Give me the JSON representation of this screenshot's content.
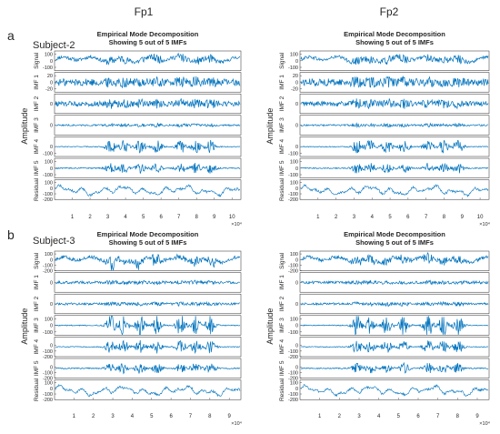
{
  "column_headers": [
    "Fp1",
    "Fp2"
  ],
  "panel_letters": [
    "a",
    "b"
  ],
  "subject_labels": [
    "Subject-2",
    "Subject-3"
  ],
  "colors": {
    "signal": "#0072bd",
    "axis": "#262626",
    "text": "#262626"
  },
  "chart_data": [
    {
      "type": "line",
      "panel": "a",
      "subject": "Subject-2",
      "channel": "Fp1",
      "title": "Empirical Mode Decomposition",
      "subtitle": "Showing 5 out of 5 IMFs",
      "ylabel": "Amplitude",
      "x_exponent_label": "×10⁴",
      "x_ticks": [
        "1",
        "2",
        "3",
        "4",
        "5",
        "6",
        "7",
        "8",
        "9",
        "10"
      ],
      "xlim": [
        0,
        10.5
      ],
      "rows": [
        {
          "name": "Signal",
          "tick_labels": [
            "100",
            "0",
            "-100"
          ],
          "ylim": [
            -150,
            150
          ]
        },
        {
          "name": "IMF 1",
          "tick_labels": [
            "20",
            "0",
            "-20"
          ],
          "ylim": [
            -30,
            30
          ]
        },
        {
          "name": "IMF 2",
          "tick_labels": [
            "0"
          ],
          "ylim": [
            -30,
            30
          ]
        },
        {
          "name": "IMF 3",
          "tick_labels": [
            "0"
          ],
          "ylim": [
            -30,
            30
          ]
        },
        {
          "name": "IMF 4",
          "tick_labels": [
            "0",
            "-100"
          ],
          "ylim": [
            -150,
            150
          ]
        },
        {
          "name": "IMF 5",
          "tick_labels": [
            "100",
            "0",
            "-100"
          ],
          "ylim": [
            -150,
            150
          ]
        },
        {
          "name": "Residual",
          "tick_labels": [
            "100",
            "0",
            "-100",
            "-200"
          ],
          "ylim": [
            -200,
            150
          ]
        }
      ]
    },
    {
      "type": "line",
      "panel": "a",
      "subject": "Subject-2",
      "channel": "Fp2",
      "title": "Empirical Mode Decomposition",
      "subtitle": "Showing 5 out of 5 IMFs",
      "ylabel": "Amplitude",
      "x_exponent_label": "×10⁴",
      "x_ticks": [
        "1",
        "2",
        "3",
        "4",
        "5",
        "6",
        "7",
        "8",
        "9",
        "10"
      ],
      "xlim": [
        0,
        10.5
      ],
      "rows": [
        {
          "name": "Signal",
          "tick_labels": [
            "100",
            "0",
            "-100"
          ],
          "ylim": [
            -150,
            150
          ]
        },
        {
          "name": "IMF 1",
          "tick_labels": [
            "20",
            "0",
            "-20"
          ],
          "ylim": [
            -30,
            30
          ]
        },
        {
          "name": "IMF 2",
          "tick_labels": [
            "0"
          ],
          "ylim": [
            -30,
            30
          ]
        },
        {
          "name": "IMF 3",
          "tick_labels": [
            "0"
          ],
          "ylim": [
            -30,
            30
          ]
        },
        {
          "name": "IMF 4",
          "tick_labels": [
            "0",
            "-100"
          ],
          "ylim": [
            -150,
            150
          ]
        },
        {
          "name": "IMF 5",
          "tick_labels": [
            "100",
            "0",
            "-100"
          ],
          "ylim": [
            -150,
            150
          ]
        },
        {
          "name": "Residual",
          "tick_labels": [
            "100",
            "0",
            "-100",
            "-200"
          ],
          "ylim": [
            -200,
            150
          ]
        }
      ]
    },
    {
      "type": "line",
      "panel": "b",
      "subject": "Subject-3",
      "channel": "Fp1",
      "title": "Empirical Mode Decomposition",
      "subtitle": "Showing 5 out of 5 IMFs",
      "ylabel": "Amplitude",
      "x_exponent_label": "×10⁴",
      "x_ticks": [
        "1",
        "2",
        "3",
        "4",
        "5",
        "6",
        "7",
        "8",
        "9"
      ],
      "xlim": [
        0,
        9.6
      ],
      "rows": [
        {
          "name": "Signal",
          "tick_labels": [
            "100",
            "0",
            "-100",
            "-200"
          ],
          "ylim": [
            -200,
            150
          ]
        },
        {
          "name": "IMF 1",
          "tick_labels": [
            "0"
          ],
          "ylim": [
            -30,
            30
          ]
        },
        {
          "name": "IMF 2",
          "tick_labels": [
            "0"
          ],
          "ylim": [
            -30,
            30
          ]
        },
        {
          "name": "IMF 3",
          "tick_labels": [
            "100",
            "0",
            "-100"
          ],
          "ylim": [
            -150,
            150
          ]
        },
        {
          "name": "IMF 4",
          "tick_labels": [
            "0",
            "-100",
            "-200"
          ],
          "ylim": [
            -200,
            150
          ]
        },
        {
          "name": "IMF 5",
          "tick_labels": [
            "0",
            "-100",
            "-200"
          ],
          "ylim": [
            -200,
            150
          ]
        },
        {
          "name": "Residual",
          "tick_labels": [
            "100",
            "0",
            "-100",
            "-200"
          ],
          "ylim": [
            -200,
            150
          ]
        }
      ]
    },
    {
      "type": "line",
      "panel": "b",
      "subject": "Subject-3",
      "channel": "Fp2",
      "title": "Empirical Mode Decomposition",
      "subtitle": "Showing 5 out of 5 IMFs",
      "ylabel": "Amplitude",
      "x_exponent_label": "×10⁴",
      "x_ticks": [
        "1",
        "2",
        "3",
        "4",
        "5",
        "6",
        "7",
        "8",
        "9"
      ],
      "xlim": [
        0,
        9.6
      ],
      "rows": [
        {
          "name": "Signal",
          "tick_labels": [
            "100",
            "0",
            "-100",
            "-200"
          ],
          "ylim": [
            -200,
            150
          ]
        },
        {
          "name": "IMF 1",
          "tick_labels": [
            "0"
          ],
          "ylim": [
            -30,
            30
          ]
        },
        {
          "name": "IMF 2",
          "tick_labels": [
            "0"
          ],
          "ylim": [
            -30,
            30
          ]
        },
        {
          "name": "IMF 3",
          "tick_labels": [
            "100",
            "0",
            "-100"
          ],
          "ylim": [
            -150,
            150
          ]
        },
        {
          "name": "IMF 4",
          "tick_labels": [
            "0",
            "-100",
            "-200"
          ],
          "ylim": [
            -200,
            150
          ]
        },
        {
          "name": "IMF 5",
          "tick_labels": [
            "0",
            "-100",
            "-200"
          ],
          "ylim": [
            -200,
            150
          ]
        },
        {
          "name": "Residual",
          "tick_labels": [
            "100",
            "0",
            "-100",
            "-200"
          ],
          "ylim": [
            -200,
            150
          ]
        }
      ]
    }
  ]
}
